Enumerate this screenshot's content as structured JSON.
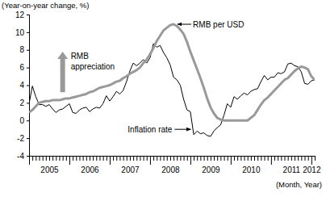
{
  "chart_data": {
    "type": "line",
    "y_label": "(Year-on-year change, %)",
    "x_label": "(Month, Year)",
    "categories": [
      null,
      null,
      null,
      null,
      null,
      null,
      "2005",
      null,
      null,
      null,
      null,
      null,
      null,
      null,
      null,
      null,
      null,
      null,
      "2006",
      null,
      null,
      null,
      null,
      null,
      null,
      null,
      null,
      null,
      null,
      null,
      "2007",
      null,
      null,
      null,
      null,
      null,
      null,
      null,
      null,
      null,
      null,
      null,
      "2008",
      null,
      null,
      null,
      null,
      null,
      null,
      null,
      null,
      null,
      null,
      null,
      "2009",
      null,
      null,
      null,
      null,
      null,
      null,
      null,
      null,
      null,
      null,
      null,
      "2010",
      null,
      null,
      null,
      null,
      null,
      null,
      null,
      null,
      null,
      null,
      null,
      "2011",
      null,
      null,
      null,
      null,
      null,
      "2012",
      null
    ],
    "series": [
      {
        "name": "Inflation rate",
        "color": "#000000",
        "values": [
          1.9,
          3.9,
          2.7,
          1.8,
          1.8,
          1.6,
          1.8,
          1.3,
          0.9,
          1.2,
          1.3,
          1.6,
          1.9,
          0.9,
          0.8,
          1.2,
          1.4,
          1.5,
          1.0,
          1.3,
          1.5,
          1.4,
          1.9,
          2.8,
          2.2,
          2.7,
          3.3,
          3.0,
          3.4,
          4.4,
          5.6,
          6.5,
          6.2,
          6.5,
          6.9,
          6.5,
          7.1,
          8.7,
          8.3,
          8.5,
          7.7,
          7.1,
          6.3,
          4.9,
          4.6,
          4.0,
          2.4,
          1.2,
          1.0,
          -1.6,
          -1.2,
          -1.5,
          -1.4,
          -1.7,
          -1.8,
          -1.2,
          -0.8,
          -0.5,
          0.6,
          1.9,
          1.5,
          2.7,
          2.4,
          2.8,
          3.1,
          2.9,
          3.3,
          3.5,
          3.6,
          4.4,
          5.1,
          4.6,
          4.9,
          4.9,
          5.4,
          5.3,
          5.5,
          6.4,
          6.5,
          6.2,
          6.1,
          5.5,
          4.2,
          4.1,
          4.5,
          4.6
        ]
      },
      {
        "name": "RMB per USD",
        "color": "#999999",
        "values": [
          0.9,
          1.2,
          1.6,
          2.0,
          2.1,
          2.2,
          2.2,
          2.3,
          2.3,
          2.3,
          2.4,
          2.5,
          2.5,
          2.6,
          2.7,
          2.8,
          2.9,
          3.0,
          3.2,
          3.3,
          3.5,
          3.7,
          3.8,
          3.9,
          4.0,
          4.2,
          4.4,
          4.5,
          4.8,
          5.0,
          5.3,
          5.5,
          5.7,
          6.0,
          6.5,
          6.9,
          7.5,
          8.2,
          9.0,
          9.6,
          10.2,
          10.5,
          10.8,
          10.9,
          10.7,
          10.3,
          9.8,
          8.9,
          7.8,
          6.8,
          5.8,
          4.8,
          3.7,
          2.5,
          1.5,
          0.8,
          0.3,
          0.1,
          0,
          0,
          0,
          0,
          0,
          0,
          0,
          0,
          0.3,
          0.6,
          1.2,
          1.8,
          2.3,
          2.6,
          3.0,
          3.4,
          3.8,
          4.2,
          4.6,
          4.8,
          5.2,
          5.6,
          5.9,
          6.1,
          6.0,
          5.8,
          5.0,
          4.6
        ]
      }
    ],
    "annotation": {
      "lines": [
        "RMB",
        "appreciation"
      ],
      "color": "#999999"
    },
    "ylim": [
      -4,
      12
    ],
    "yticks": [
      -4,
      -2,
      0,
      2,
      4,
      6,
      8,
      10,
      12
    ],
    "grid": false
  }
}
